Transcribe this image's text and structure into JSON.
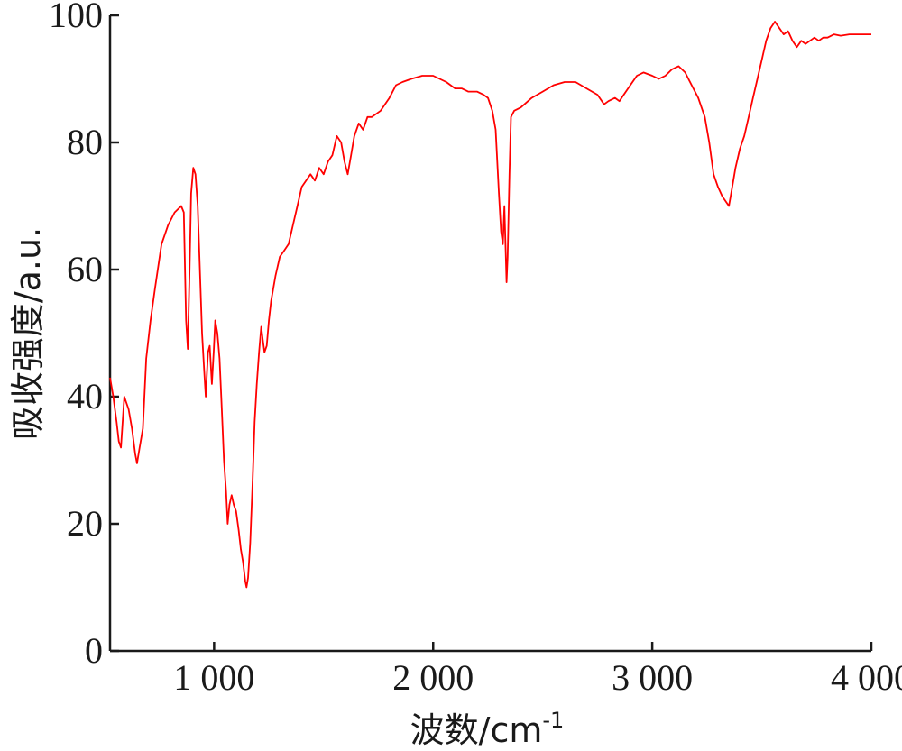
{
  "chart_data": {
    "type": "line",
    "title": "",
    "xlabel": "波数/cm",
    "xlabel_superscript": "-1",
    "ylabel": "吸收强度/a.u.",
    "xlim": [
      525,
      4000
    ],
    "ylim": [
      0,
      100
    ],
    "xticks": [
      1000,
      2000,
      3000,
      4000
    ],
    "xtick_labels": [
      "1 000",
      "2 000",
      "3 000",
      "4 000"
    ],
    "yticks": [
      0,
      20,
      40,
      60,
      80,
      100
    ],
    "ytick_labels": [
      "0",
      "20",
      "40",
      "60",
      "80",
      "100"
    ],
    "grid": false,
    "series": [
      {
        "name": "",
        "color": "#ff0000",
        "points": [
          [
            525,
            43
          ],
          [
            540,
            40
          ],
          [
            555,
            36
          ],
          [
            565,
            33
          ],
          [
            575,
            32
          ],
          [
            590,
            40
          ],
          [
            610,
            38
          ],
          [
            625,
            35
          ],
          [
            640,
            31
          ],
          [
            648,
            29.5
          ],
          [
            660,
            32
          ],
          [
            675,
            35
          ],
          [
            690,
            46
          ],
          [
            710,
            52
          ],
          [
            730,
            57
          ],
          [
            760,
            64
          ],
          [
            790,
            67
          ],
          [
            820,
            69
          ],
          [
            850,
            70
          ],
          [
            862,
            69
          ],
          [
            872,
            52
          ],
          [
            880,
            47.5
          ],
          [
            888,
            60
          ],
          [
            895,
            72
          ],
          [
            905,
            76
          ],
          [
            915,
            75
          ],
          [
            925,
            70
          ],
          [
            935,
            60
          ],
          [
            945,
            50
          ],
          [
            955,
            44
          ],
          [
            962,
            40
          ],
          [
            972,
            47
          ],
          [
            980,
            48
          ],
          [
            990,
            42
          ],
          [
            998,
            47
          ],
          [
            1005,
            52
          ],
          [
            1015,
            50
          ],
          [
            1025,
            46
          ],
          [
            1035,
            38
          ],
          [
            1045,
            30
          ],
          [
            1055,
            25
          ],
          [
            1062,
            20
          ],
          [
            1070,
            23
          ],
          [
            1080,
            24.5
          ],
          [
            1090,
            23
          ],
          [
            1100,
            22
          ],
          [
            1112,
            19
          ],
          [
            1122,
            16
          ],
          [
            1132,
            14
          ],
          [
            1142,
            11
          ],
          [
            1148,
            10
          ],
          [
            1155,
            11.5
          ],
          [
            1165,
            17
          ],
          [
            1175,
            26
          ],
          [
            1185,
            36
          ],
          [
            1195,
            42
          ],
          [
            1205,
            47
          ],
          [
            1215,
            51
          ],
          [
            1222,
            49
          ],
          [
            1230,
            47
          ],
          [
            1240,
            48
          ],
          [
            1250,
            52
          ],
          [
            1260,
            55
          ],
          [
            1280,
            59
          ],
          [
            1300,
            62
          ],
          [
            1320,
            63
          ],
          [
            1340,
            64
          ],
          [
            1360,
            67
          ],
          [
            1380,
            70
          ],
          [
            1400,
            73
          ],
          [
            1420,
            74
          ],
          [
            1440,
            75
          ],
          [
            1460,
            74
          ],
          [
            1480,
            76
          ],
          [
            1500,
            75
          ],
          [
            1520,
            77
          ],
          [
            1540,
            78
          ],
          [
            1560,
            81
          ],
          [
            1580,
            80
          ],
          [
            1595,
            77
          ],
          [
            1610,
            75
          ],
          [
            1625,
            78
          ],
          [
            1640,
            81
          ],
          [
            1660,
            83
          ],
          [
            1680,
            82
          ],
          [
            1700,
            84
          ],
          [
            1720,
            84
          ],
          [
            1740,
            84.5
          ],
          [
            1760,
            85
          ],
          [
            1780,
            86
          ],
          [
            1800,
            87
          ],
          [
            1830,
            89
          ],
          [
            1860,
            89.5
          ],
          [
            1900,
            90
          ],
          [
            1950,
            90.5
          ],
          [
            2000,
            90.5
          ],
          [
            2030,
            90
          ],
          [
            2060,
            89.5
          ],
          [
            2100,
            88.5
          ],
          [
            2130,
            88.5
          ],
          [
            2160,
            88
          ],
          [
            2200,
            88
          ],
          [
            2230,
            87.5
          ],
          [
            2250,
            87
          ],
          [
            2270,
            85
          ],
          [
            2285,
            82
          ],
          [
            2300,
            72
          ],
          [
            2310,
            66
          ],
          [
            2318,
            64
          ],
          [
            2325,
            70
          ],
          [
            2330,
            64
          ],
          [
            2335,
            58
          ],
          [
            2340,
            62
          ],
          [
            2348,
            75
          ],
          [
            2355,
            84
          ],
          [
            2370,
            85
          ],
          [
            2400,
            85.5
          ],
          [
            2450,
            87
          ],
          [
            2500,
            88
          ],
          [
            2550,
            89
          ],
          [
            2600,
            89.5
          ],
          [
            2650,
            89.5
          ],
          [
            2700,
            88.5
          ],
          [
            2750,
            87.5
          ],
          [
            2780,
            86
          ],
          [
            2800,
            86.5
          ],
          [
            2830,
            87
          ],
          [
            2850,
            86.5
          ],
          [
            2870,
            87.5
          ],
          [
            2900,
            89
          ],
          [
            2930,
            90.5
          ],
          [
            2960,
            91
          ],
          [
            3000,
            90.5
          ],
          [
            3030,
            90
          ],
          [
            3060,
            90.5
          ],
          [
            3090,
            91.5
          ],
          [
            3120,
            92
          ],
          [
            3150,
            91
          ],
          [
            3180,
            89
          ],
          [
            3210,
            87
          ],
          [
            3240,
            84
          ],
          [
            3260,
            80
          ],
          [
            3280,
            75
          ],
          [
            3300,
            73
          ],
          [
            3320,
            71.5
          ],
          [
            3340,
            70.5
          ],
          [
            3350,
            70
          ],
          [
            3360,
            72
          ],
          [
            3380,
            76
          ],
          [
            3400,
            79
          ],
          [
            3420,
            81
          ],
          [
            3440,
            84
          ],
          [
            3460,
            87
          ],
          [
            3480,
            90
          ],
          [
            3500,
            93
          ],
          [
            3520,
            96
          ],
          [
            3540,
            98
          ],
          [
            3560,
            99
          ],
          [
            3580,
            98
          ],
          [
            3600,
            97
          ],
          [
            3620,
            97.5
          ],
          [
            3640,
            96
          ],
          [
            3660,
            95
          ],
          [
            3680,
            96
          ],
          [
            3700,
            95.5
          ],
          [
            3720,
            96
          ],
          [
            3740,
            96.5
          ],
          [
            3760,
            96
          ],
          [
            3780,
            96.5
          ],
          [
            3800,
            96.5
          ],
          [
            3830,
            97
          ],
          [
            3860,
            96.8
          ],
          [
            3900,
            97
          ],
          [
            3950,
            97
          ],
          [
            4000,
            97
          ]
        ]
      }
    ]
  }
}
